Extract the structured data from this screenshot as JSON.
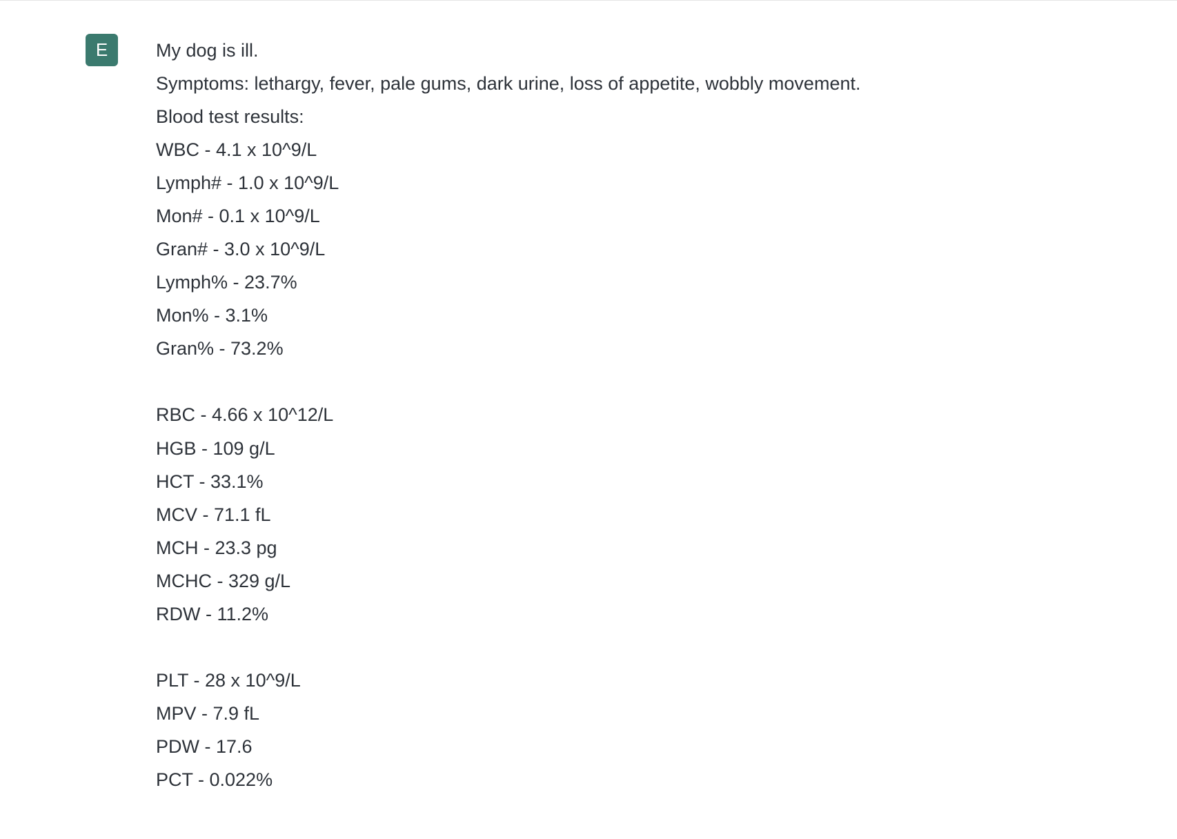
{
  "avatar": {
    "letter": "E",
    "bg_color": "#3b7a6e",
    "text_color": "#ffffff"
  },
  "message": {
    "intro": "My dog is ill.",
    "symptoms": "Symptoms: lethargy, fever, pale gums, dark urine, loss of appetite, wobbly movement.",
    "blood_header": "Blood test results:",
    "wbc": "WBC - 4.1 x 10^9/L",
    "lymph_num": "Lymph# - 1.0 x 10^9/L",
    "mon_num": "Mon# - 0.1 x 10^9/L",
    "gran_num": "Gran# - 3.0 x 10^9/L",
    "lymph_pct": "Lymph% - 23.7%",
    "mon_pct": "Mon% - 3.1%",
    "gran_pct": "Gran% - 73.2%",
    "rbc": "RBC - 4.66 x 10^12/L",
    "hgb": "HGB - 109 g/L",
    "hct": "HCT - 33.1%",
    "mcv": "MCV - 71.1 fL",
    "mch": "MCH - 23.3 pg",
    "mchc": "MCHC - 329 g/L",
    "rdw": "RDW - 11.2%",
    "plt": "PLT - 28 x 10^9/L",
    "mpv": "MPV - 7.9 fL",
    "pdw": "PDW - 17.6",
    "pct": "PCT - 0.022%"
  },
  "colors": {
    "text": "#2d3239",
    "background": "#ffffff",
    "border": "#e5e5e5"
  }
}
